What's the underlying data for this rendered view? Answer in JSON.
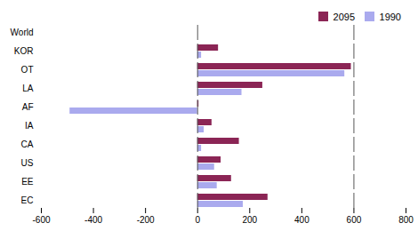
{
  "chart_data": {
    "type": "bar",
    "orientation": "horizontal",
    "categories": [
      "World",
      "KOR",
      "OT",
      "LA",
      "AF",
      "IA",
      "CA",
      "US",
      "EE",
      "EC"
    ],
    "series": [
      {
        "name": "2095",
        "color": "#8B2555",
        "values": [
          0,
          80,
          590,
          250,
          5,
          55,
          160,
          90,
          130,
          270
        ]
      },
      {
        "name": "1990",
        "color": "#AAAAEE",
        "values": [
          0,
          15,
          565,
          170,
          -490,
          25,
          15,
          65,
          75,
          175
        ]
      }
    ],
    "xlim": [
      -600,
      800
    ],
    "xticks": [
      -600,
      -400,
      -200,
      0,
      200,
      400,
      600,
      800
    ],
    "vlines": [
      0,
      600
    ],
    "grid": false,
    "legend": "upper right"
  }
}
